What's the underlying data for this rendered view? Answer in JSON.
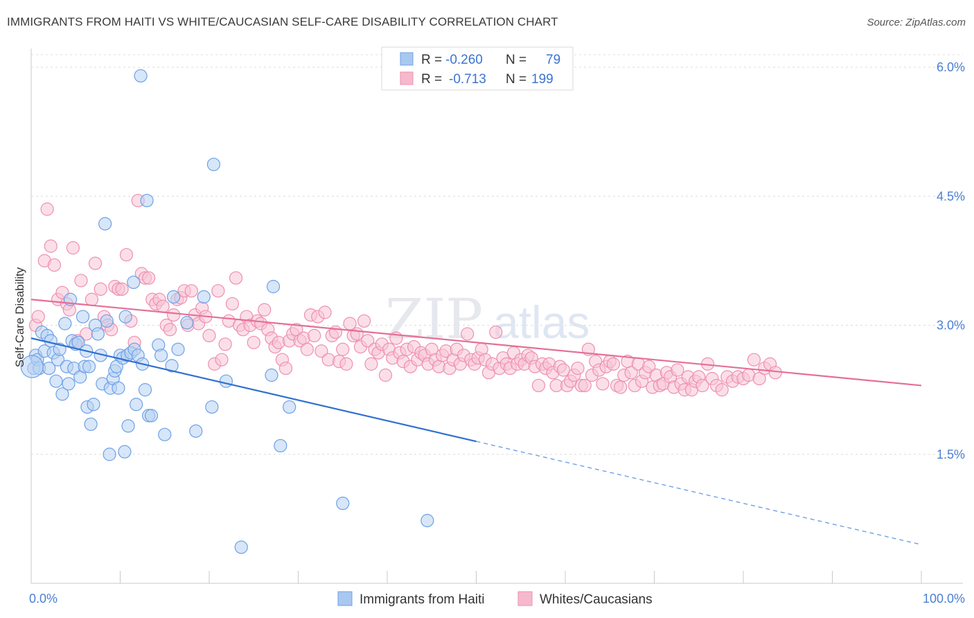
{
  "title": "IMMIGRANTS FROM HAITI VS WHITE/CAUCASIAN SELF-CARE DISABILITY CORRELATION CHART",
  "source": "Source: ZipAtlas.com",
  "watermark": {
    "zip": "ZIP",
    "atlas": "atlas"
  },
  "legend": {
    "rows": [
      {
        "r_label": "R = ",
        "r_value": "-0.260",
        "n_label": "N = ",
        "n_value": "79",
        "color": "#a9c8f0"
      },
      {
        "r_label": "R = ",
        "r_value": "-0.713",
        "n_label": "N = ",
        "n_value": "199",
        "color": "#f6b8cc"
      }
    ]
  },
  "chart_data": {
    "type": "scatter",
    "ylabel": "Self-Care Disability",
    "xlim": [
      0,
      100
    ],
    "ylim": [
      0,
      6.3
    ],
    "x_ticks": [
      "0.0%",
      "100.0%"
    ],
    "y_ticks": [
      {
        "value": 1.5,
        "label": "1.5%"
      },
      {
        "value": 3.0,
        "label": "3.0%"
      },
      {
        "value": 4.5,
        "label": "4.5%"
      },
      {
        "value": 6.0,
        "label": "6.0%"
      }
    ],
    "grid": true,
    "series": [
      {
        "name": "Immigrants from Haiti",
        "color": "#6ea0e6",
        "fill": "#b7d1f3",
        "trend": {
          "x0": 0,
          "y0": 2.85,
          "x1": 50,
          "y1": 1.65,
          "dash_to_x": 100,
          "dash_to_y": 0.45
        },
        "points": [
          [
            0.3,
            2.5
          ],
          [
            0.5,
            2.65
          ],
          [
            0.7,
            2.6
          ],
          [
            0.9,
            2.5
          ],
          [
            1.2,
            2.92
          ],
          [
            1.5,
            2.7
          ],
          [
            1.8,
            2.88
          ],
          [
            2.0,
            2.5
          ],
          [
            2.2,
            2.82
          ],
          [
            2.5,
            2.68
          ],
          [
            2.8,
            2.35
          ],
          [
            3.0,
            2.6
          ],
          [
            3.2,
            2.72
          ],
          [
            3.5,
            2.2
          ],
          [
            3.8,
            3.02
          ],
          [
            4.0,
            2.52
          ],
          [
            4.2,
            2.32
          ],
          [
            4.4,
            3.3
          ],
          [
            4.6,
            2.82
          ],
          [
            4.8,
            2.5
          ],
          [
            5.0,
            2.78
          ],
          [
            5.3,
            2.8
          ],
          [
            5.5,
            2.4
          ],
          [
            5.8,
            3.1
          ],
          [
            6.0,
            2.52
          ],
          [
            6.2,
            2.7
          ],
          [
            6.3,
            2.05
          ],
          [
            6.5,
            2.52
          ],
          [
            6.7,
            1.85
          ],
          [
            7.0,
            2.08
          ],
          [
            7.2,
            3.0
          ],
          [
            7.5,
            2.9
          ],
          [
            7.8,
            2.65
          ],
          [
            8.0,
            2.32
          ],
          [
            8.3,
            4.18
          ],
          [
            8.5,
            3.05
          ],
          [
            8.8,
            1.5
          ],
          [
            8.9,
            2.27
          ],
          [
            9.2,
            2.38
          ],
          [
            9.4,
            2.47
          ],
          [
            9.6,
            2.52
          ],
          [
            9.8,
            2.27
          ],
          [
            10.0,
            2.65
          ],
          [
            10.3,
            2.62
          ],
          [
            10.5,
            1.53
          ],
          [
            10.6,
            3.1
          ],
          [
            10.8,
            2.65
          ],
          [
            10.9,
            1.83
          ],
          [
            11.2,
            2.68
          ],
          [
            11.5,
            3.5
          ],
          [
            11.6,
            2.72
          ],
          [
            11.8,
            2.08
          ],
          [
            12.0,
            2.65
          ],
          [
            12.3,
            5.9
          ],
          [
            12.5,
            2.55
          ],
          [
            12.8,
            2.25
          ],
          [
            13.0,
            4.45
          ],
          [
            13.2,
            1.95
          ],
          [
            13.5,
            1.95
          ],
          [
            14.3,
            2.77
          ],
          [
            14.6,
            2.65
          ],
          [
            15.0,
            1.73
          ],
          [
            15.8,
            2.53
          ],
          [
            16.0,
            3.33
          ],
          [
            16.5,
            2.72
          ],
          [
            17.5,
            3.03
          ],
          [
            18.5,
            1.77
          ],
          [
            19.4,
            3.33
          ],
          [
            20.3,
            2.05
          ],
          [
            20.5,
            4.87
          ],
          [
            21.9,
            2.35
          ],
          [
            23.6,
            0.42
          ],
          [
            27.0,
            2.42
          ],
          [
            27.2,
            3.45
          ],
          [
            28.0,
            1.6
          ],
          [
            29.0,
            2.05
          ],
          [
            35.0,
            0.93
          ],
          [
            44.5,
            0.73
          ],
          [
            0.1,
            2.52
          ]
        ]
      },
      {
        "name": "Whites/Caucasians",
        "color": "#ee8fae",
        "fill": "#f8c5d6",
        "trend": {
          "x0": 0,
          "y0": 3.3,
          "x1": 100,
          "y1": 2.3
        },
        "points": [
          [
            0.5,
            3.0
          ],
          [
            0.8,
            3.1
          ],
          [
            1.5,
            3.75
          ],
          [
            1.8,
            4.35
          ],
          [
            2.2,
            3.92
          ],
          [
            2.6,
            3.7
          ],
          [
            3.0,
            3.3
          ],
          [
            3.5,
            3.38
          ],
          [
            4.0,
            3.25
          ],
          [
            4.3,
            3.18
          ],
          [
            4.7,
            3.9
          ],
          [
            5.2,
            2.82
          ],
          [
            5.6,
            3.52
          ],
          [
            6.2,
            2.9
          ],
          [
            6.8,
            3.3
          ],
          [
            7.2,
            3.72
          ],
          [
            7.8,
            3.42
          ],
          [
            8.2,
            3.1
          ],
          [
            8.6,
            3.0
          ],
          [
            9.0,
            2.95
          ],
          [
            9.4,
            3.45
          ],
          [
            9.8,
            3.42
          ],
          [
            10.2,
            3.42
          ],
          [
            10.7,
            3.82
          ],
          [
            11.2,
            3.05
          ],
          [
            11.6,
            2.8
          ],
          [
            12.0,
            4.45
          ],
          [
            12.4,
            3.6
          ],
          [
            12.8,
            3.55
          ],
          [
            13.2,
            3.55
          ],
          [
            13.6,
            3.3
          ],
          [
            14.0,
            3.25
          ],
          [
            14.4,
            3.3
          ],
          [
            14.8,
            3.22
          ],
          [
            15.2,
            3.0
          ],
          [
            15.6,
            2.95
          ],
          [
            16.0,
            3.12
          ],
          [
            16.4,
            3.3
          ],
          [
            16.8,
            3.32
          ],
          [
            17.2,
            3.4
          ],
          [
            17.6,
            3.0
          ],
          [
            18.0,
            3.4
          ],
          [
            18.4,
            3.12
          ],
          [
            18.8,
            3.02
          ],
          [
            19.2,
            3.2
          ],
          [
            19.6,
            3.1
          ],
          [
            20.0,
            2.88
          ],
          [
            20.6,
            2.55
          ],
          [
            21.0,
            3.4
          ],
          [
            21.4,
            2.6
          ],
          [
            21.8,
            2.78
          ],
          [
            22.2,
            3.05
          ],
          [
            22.6,
            3.25
          ],
          [
            23.0,
            3.55
          ],
          [
            23.4,
            3.0
          ],
          [
            23.8,
            2.95
          ],
          [
            24.2,
            3.1
          ],
          [
            24.6,
            3.0
          ],
          [
            25.0,
            2.8
          ],
          [
            25.4,
            3.05
          ],
          [
            25.8,
            3.02
          ],
          [
            26.2,
            3.18
          ],
          [
            26.6,
            2.95
          ],
          [
            27.0,
            2.85
          ],
          [
            27.4,
            2.75
          ],
          [
            27.8,
            2.8
          ],
          [
            28.2,
            2.6
          ],
          [
            28.6,
            2.5
          ],
          [
            29.0,
            2.82
          ],
          [
            29.4,
            2.9
          ],
          [
            29.8,
            2.95
          ],
          [
            30.2,
            2.82
          ],
          [
            30.6,
            2.85
          ],
          [
            31.0,
            2.72
          ],
          [
            31.4,
            3.12
          ],
          [
            31.8,
            2.88
          ],
          [
            32.2,
            3.1
          ],
          [
            32.6,
            2.7
          ],
          [
            33.0,
            3.15
          ],
          [
            33.4,
            2.6
          ],
          [
            33.8,
            2.88
          ],
          [
            34.2,
            2.92
          ],
          [
            34.6,
            2.58
          ],
          [
            35.0,
            2.72
          ],
          [
            35.4,
            2.55
          ],
          [
            35.8,
            3.02
          ],
          [
            36.2,
            2.88
          ],
          [
            36.6,
            2.9
          ],
          [
            37.0,
            2.75
          ],
          [
            37.4,
            3.05
          ],
          [
            37.8,
            2.82
          ],
          [
            38.2,
            2.55
          ],
          [
            38.6,
            2.72
          ],
          [
            39.0,
            2.68
          ],
          [
            39.4,
            2.78
          ],
          [
            39.8,
            2.42
          ],
          [
            40.2,
            2.72
          ],
          [
            40.6,
            2.62
          ],
          [
            41.0,
            2.85
          ],
          [
            41.4,
            2.68
          ],
          [
            41.8,
            2.58
          ],
          [
            42.2,
            2.72
          ],
          [
            42.6,
            2.52
          ],
          [
            43.0,
            2.75
          ],
          [
            43.4,
            2.6
          ],
          [
            43.8,
            2.68
          ],
          [
            44.2,
            2.65
          ],
          [
            44.6,
            2.55
          ],
          [
            45.0,
            2.72
          ],
          [
            45.4,
            2.6
          ],
          [
            45.8,
            2.52
          ],
          [
            46.2,
            2.65
          ],
          [
            46.6,
            2.7
          ],
          [
            47.0,
            2.5
          ],
          [
            47.4,
            2.6
          ],
          [
            47.8,
            2.72
          ],
          [
            48.2,
            2.55
          ],
          [
            48.6,
            2.65
          ],
          [
            49.0,
            2.9
          ],
          [
            49.4,
            2.6
          ],
          [
            49.8,
            2.55
          ],
          [
            50.2,
            2.62
          ],
          [
            50.6,
            2.72
          ],
          [
            51.0,
            2.6
          ],
          [
            51.4,
            2.45
          ],
          [
            51.8,
            2.55
          ],
          [
            52.2,
            2.92
          ],
          [
            52.6,
            2.5
          ],
          [
            53.0,
            2.62
          ],
          [
            53.4,
            2.55
          ],
          [
            53.8,
            2.5
          ],
          [
            54.2,
            2.68
          ],
          [
            54.6,
            2.55
          ],
          [
            55.0,
            2.6
          ],
          [
            55.4,
            2.55
          ],
          [
            55.8,
            2.65
          ],
          [
            56.2,
            2.62
          ],
          [
            56.6,
            2.52
          ],
          [
            57.0,
            2.3
          ],
          [
            57.4,
            2.55
          ],
          [
            57.8,
            2.5
          ],
          [
            58.2,
            2.55
          ],
          [
            58.6,
            2.45
          ],
          [
            59.0,
            2.3
          ],
          [
            59.4,
            2.52
          ],
          [
            59.8,
            2.48
          ],
          [
            60.2,
            2.3
          ],
          [
            60.6,
            2.35
          ],
          [
            61.0,
            2.42
          ],
          [
            61.4,
            2.5
          ],
          [
            61.8,
            2.3
          ],
          [
            62.2,
            2.3
          ],
          [
            62.6,
            2.72
          ],
          [
            63.0,
            2.42
          ],
          [
            63.4,
            2.58
          ],
          [
            63.8,
            2.48
          ],
          [
            64.2,
            2.32
          ],
          [
            64.6,
            2.52
          ],
          [
            65.0,
            2.58
          ],
          [
            65.4,
            2.55
          ],
          [
            65.8,
            2.3
          ],
          [
            66.2,
            2.28
          ],
          [
            66.6,
            2.42
          ],
          [
            67.0,
            2.58
          ],
          [
            67.4,
            2.45
          ],
          [
            67.8,
            2.3
          ],
          [
            68.2,
            2.55
          ],
          [
            68.6,
            2.35
          ],
          [
            69.0,
            2.45
          ],
          [
            69.4,
            2.52
          ],
          [
            69.8,
            2.28
          ],
          [
            70.2,
            2.42
          ],
          [
            70.6,
            2.3
          ],
          [
            71.0,
            2.32
          ],
          [
            71.4,
            2.45
          ],
          [
            71.8,
            2.4
          ],
          [
            72.2,
            2.28
          ],
          [
            72.6,
            2.48
          ],
          [
            73.0,
            2.32
          ],
          [
            73.4,
            2.25
          ],
          [
            73.8,
            2.4
          ],
          [
            74.2,
            2.25
          ],
          [
            74.6,
            2.35
          ],
          [
            75.0,
            2.4
          ],
          [
            75.4,
            2.3
          ],
          [
            76.0,
            2.55
          ],
          [
            76.5,
            2.38
          ],
          [
            77.0,
            2.3
          ],
          [
            77.6,
            2.25
          ],
          [
            78.2,
            2.4
          ],
          [
            78.8,
            2.35
          ],
          [
            79.4,
            2.4
          ],
          [
            80.0,
            2.38
          ],
          [
            80.6,
            2.42
          ],
          [
            81.2,
            2.6
          ],
          [
            81.8,
            2.38
          ],
          [
            82.4,
            2.5
          ],
          [
            83.0,
            2.55
          ],
          [
            83.6,
            2.45
          ]
        ]
      }
    ]
  },
  "bottom_legend": [
    {
      "label": "Immigrants from Haiti",
      "color": "#a9c8f0"
    },
    {
      "label": "Whites/Caucasians",
      "color": "#f6b8cc"
    }
  ]
}
